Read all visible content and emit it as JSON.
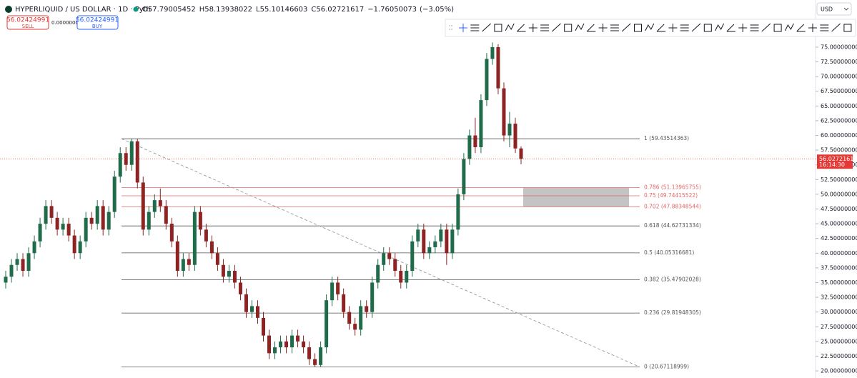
{
  "chart_data": {
    "type": "candlestick",
    "title": "HYPERLIQUID / US DOLLAR · 1D · Pyth",
    "legend": [
      {
        "label": "O",
        "value": 57.79005452
      },
      {
        "label": "H",
        "value": 58.13938022
      },
      {
        "label": "L",
        "value": 55.10146603
      },
      {
        "label": "C",
        "value": 56.02721617
      }
    ],
    "change": "−1.76050073",
    "change_percent": "(−3.05%)",
    "sell": {
      "price": 56.02424991,
      "label": "SELL"
    },
    "spread": "0.00000000",
    "buy": {
      "price": 56.02424991,
      "label": "BUY"
    },
    "currency": "USD",
    "countdown": "16:14:30",
    "up_color": "#1f6b4a",
    "down_color": "#8e2323",
    "ylim": [
      18.79,
      76.21
    ],
    "yticks": [
      {
        "value": 20,
        "label": "20.00000000"
      },
      {
        "value": 22.5,
        "label": "22.50000000"
      },
      {
        "value": 25,
        "label": "25.00000000"
      },
      {
        "value": 27.5,
        "label": "27.50000000"
      },
      {
        "value": 30,
        "label": "30.00000000"
      },
      {
        "value": 32.5,
        "label": "32.50000000"
      },
      {
        "value": 35,
        "label": "35.00000000"
      },
      {
        "value": 37.5,
        "label": "37.50000000"
      },
      {
        "value": 40,
        "label": "40.00000000"
      },
      {
        "value": 42.5,
        "label": "42.50000000"
      },
      {
        "value": 45,
        "label": "45.00000000"
      },
      {
        "value": 47.5,
        "label": "47.50000000"
      },
      {
        "value": 50,
        "label": "50.00000000"
      },
      {
        "value": 52.5,
        "label": "52.50000000"
      },
      {
        "value": 55,
        "label": "55.00000000"
      },
      {
        "value": 57.5,
        "label": "57.50000000"
      },
      {
        "value": 60,
        "label": "60.00000000"
      },
      {
        "value": 62.5,
        "label": "62.50000000"
      },
      {
        "value": 65,
        "label": "65.00000000"
      },
      {
        "value": 67.5,
        "label": "67.50000000"
      },
      {
        "value": 70,
        "label": "70.00000000"
      },
      {
        "value": 72.5,
        "label": "72.50000000"
      },
      {
        "value": 75,
        "label": "75.00000000"
      }
    ],
    "fib": [
      {
        "value": 59.43514363,
        "label": "1 (59.43514363)",
        "color": "#555555"
      },
      {
        "value": 51.13965755,
        "label": "0.786 (51.13965755)",
        "color": "#e06666"
      },
      {
        "value": 49.74415522,
        "label": "0.75 (49.74415522)",
        "color": "#e06666"
      },
      {
        "value": 47.88348544,
        "label": "0.702 (47.88348544)",
        "color": "#e06666"
      },
      {
        "value": 44.62731334,
        "label": "0.618 (44.62731334)",
        "color": "#555555"
      },
      {
        "value": 40.05316681,
        "label": "0.5 (40.05316681)",
        "color": "#555555"
      },
      {
        "value": 35.47902028,
        "label": "0.382 (35.47902028)",
        "color": "#555555"
      },
      {
        "value": 29.81948305,
        "label": "0.236 (29.81948305)",
        "color": "#555555"
      },
      {
        "value": 20.67118999,
        "label": "0 (20.67118999)",
        "color": "#555555"
      }
    ],
    "candles": [
      [
        35,
        37,
        34,
        36
      ],
      [
        36,
        39,
        35,
        38
      ],
      [
        38,
        40,
        37,
        39
      ],
      [
        39,
        40,
        36,
        37
      ],
      [
        37,
        41,
        36,
        40
      ],
      [
        40,
        43,
        39,
        42
      ],
      [
        42,
        46,
        41,
        45
      ],
      [
        45,
        49,
        44,
        48
      ],
      [
        48,
        49,
        45,
        46
      ],
      [
        46,
        47,
        43,
        44
      ],
      [
        44,
        46,
        43,
        45
      ],
      [
        45,
        46,
        42,
        43
      ],
      [
        43,
        44,
        39,
        40
      ],
      [
        40,
        43,
        39,
        42
      ],
      [
        42,
        47,
        41,
        46
      ],
      [
        46,
        47,
        44,
        45
      ],
      [
        45,
        49,
        44,
        48
      ],
      [
        48,
        49,
        43,
        44
      ],
      [
        44,
        48,
        43,
        47
      ],
      [
        47,
        54,
        46,
        53
      ],
      [
        53,
        58,
        52,
        57
      ],
      [
        57,
        58,
        54,
        55
      ],
      [
        55,
        59.4,
        54,
        59
      ],
      [
        59,
        59.4,
        51,
        52
      ],
      [
        52,
        53,
        43,
        44
      ],
      [
        44,
        48,
        43,
        47
      ],
      [
        47,
        50,
        46,
        49
      ],
      [
        49,
        51,
        47,
        48
      ],
      [
        48,
        49,
        44,
        45
      ],
      [
        45,
        46,
        41,
        42
      ],
      [
        42,
        43,
        36,
        37
      ],
      [
        37,
        40,
        36,
        39
      ],
      [
        39,
        40,
        37,
        38
      ],
      [
        38,
        48,
        37,
        47
      ],
      [
        47,
        48,
        43,
        44
      ],
      [
        44,
        45,
        41,
        42
      ],
      [
        42,
        43,
        39,
        40
      ],
      [
        40,
        41,
        37,
        38
      ],
      [
        38,
        39,
        35,
        36
      ],
      [
        36,
        38,
        35,
        37
      ],
      [
        37,
        38,
        34,
        35
      ],
      [
        35,
        36,
        32,
        33
      ],
      [
        33,
        34,
        29,
        30
      ],
      [
        30,
        32,
        29,
        31
      ],
      [
        31,
        32,
        28,
        29
      ],
      [
        29,
        30,
        25,
        26
      ],
      [
        26,
        27,
        22,
        23
      ],
      [
        23,
        25,
        22,
        24
      ],
      [
        24,
        26,
        23,
        25
      ],
      [
        25,
        26,
        23,
        24
      ],
      [
        24,
        27,
        23,
        26
      ],
      [
        26,
        27,
        24,
        25
      ],
      [
        25,
        26,
        23,
        24
      ],
      [
        24,
        25,
        21,
        22
      ],
      [
        22,
        23,
        20.7,
        21
      ],
      [
        21,
        25,
        20.7,
        24
      ],
      [
        24,
        33,
        23,
        32
      ],
      [
        32,
        36,
        31,
        35
      ],
      [
        35,
        36,
        32,
        33
      ],
      [
        33,
        34,
        29,
        30
      ],
      [
        30,
        31,
        27,
        28
      ],
      [
        28,
        29,
        26,
        27
      ],
      [
        27,
        32,
        26,
        31
      ],
      [
        31,
        32,
        29,
        30
      ],
      [
        30,
        36,
        29,
        35
      ],
      [
        35,
        39,
        34,
        38
      ],
      [
        38,
        41,
        37,
        40
      ],
      [
        40,
        41,
        38,
        39
      ],
      [
        39,
        40,
        36,
        37
      ],
      [
        37,
        38,
        34,
        35
      ],
      [
        35,
        38,
        34,
        37
      ],
      [
        37,
        43,
        36,
        42
      ],
      [
        42,
        45,
        41,
        44
      ],
      [
        44,
        45,
        39,
        40
      ],
      [
        40,
        42,
        39,
        41
      ],
      [
        41,
        43,
        40,
        42
      ],
      [
        42,
        45,
        41,
        44
      ],
      [
        44,
        45,
        38,
        40
      ],
      [
        40,
        45,
        39,
        44
      ],
      [
        44,
        51,
        43,
        50
      ],
      [
        50,
        57,
        49,
        56
      ],
      [
        56,
        61,
        55,
        60
      ],
      [
        60,
        63,
        57,
        58
      ],
      [
        58,
        67,
        57,
        66
      ],
      [
        66,
        74,
        65,
        73
      ],
      [
        73,
        75.8,
        72,
        75
      ],
      [
        75,
        75.5,
        67,
        68
      ],
      [
        68,
        69,
        59,
        60
      ],
      [
        60,
        64,
        58,
        62
      ],
      [
        62,
        63,
        57,
        57.79
      ]
    ]
  }
}
